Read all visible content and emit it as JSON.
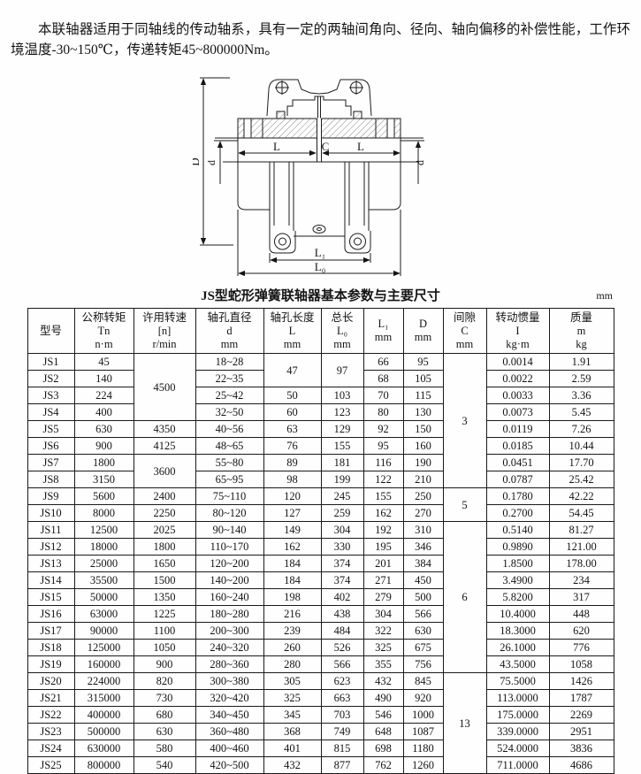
{
  "intro": {
    "text": "本联轴器适用于同轴线的传动轴系，具有一定的两轴间角向、径向、轴向偏移的补偿性能，工作环境温度-30~150℃，传递转矩45~800000Nm。"
  },
  "diagram": {
    "labels": {
      "D": "D",
      "d": "d",
      "L": "L",
      "C": "C",
      "L1": "L₁",
      "L0": "L₀"
    }
  },
  "table": {
    "title": "JS型蛇形弹簧联轴器基本参数与主要尺寸",
    "unit": "mm",
    "headers": [
      [
        "型号"
      ],
      [
        "公称转矩",
        "Tn",
        "n·m"
      ],
      [
        "许用转速",
        "[n]",
        "r/min"
      ],
      [
        "轴孔直径",
        "d",
        "mm"
      ],
      [
        "轴孔长度",
        "L",
        "mm"
      ],
      [
        "总长",
        "L₀",
        "mm"
      ],
      [
        "L₁",
        "mm"
      ],
      [
        "D",
        "mm"
      ],
      [
        "间隙",
        "C",
        "mm"
      ],
      [
        "转动惯量",
        "I",
        "kg·m"
      ],
      [
        "质量",
        "m",
        "kg"
      ]
    ],
    "rows": [
      [
        "JS1",
        "45",
        {
          "v": "4500",
          "rs": 4
        },
        "18~28",
        {
          "v": "47",
          "rs": 2
        },
        {
          "v": "97",
          "rs": 2
        },
        "66",
        "95",
        {
          "v": "3",
          "rs": 8
        },
        "0.0014",
        "1.91"
      ],
      [
        "JS2",
        "140",
        null,
        "22~35",
        null,
        null,
        "68",
        "105",
        null,
        "0.0022",
        "2.59"
      ],
      [
        "JS3",
        "224",
        null,
        "25~42",
        "50",
        "103",
        "70",
        "115",
        null,
        "0.0033",
        "3.36"
      ],
      [
        "JS4",
        "400",
        null,
        "32~50",
        "60",
        "123",
        "80",
        "130",
        null,
        "0.0073",
        "5.45"
      ],
      [
        "JS5",
        "630",
        "4350",
        "40~56",
        "63",
        "129",
        "92",
        "150",
        null,
        "0.0119",
        "7.26"
      ],
      [
        "JS6",
        "900",
        "4125",
        "48~65",
        "76",
        "155",
        "95",
        "160",
        null,
        "0.0185",
        "10.44"
      ],
      [
        "JS7",
        "1800",
        {
          "v": "3600",
          "rs": 2
        },
        "55~80",
        "89",
        "181",
        "116",
        "190",
        null,
        "0.0451",
        "17.70"
      ],
      [
        "JS8",
        "3150",
        null,
        "65~95",
        "98",
        "199",
        "122",
        "210",
        null,
        "0.0787",
        "25.42"
      ],
      [
        "JS9",
        "5600",
        "2400",
        "75~110",
        "120",
        "245",
        "155",
        "250",
        {
          "v": "5",
          "rs": 2
        },
        "0.1780",
        "42.22"
      ],
      [
        "JS10",
        "8000",
        "2250",
        "80~120",
        "127",
        "259",
        "162",
        "270",
        null,
        "0.2700",
        "54.45"
      ],
      [
        "JS11",
        "12500",
        "2025",
        "90~140",
        "149",
        "304",
        "192",
        "310",
        {
          "v": "6",
          "rs": 9
        },
        "0.5140",
        "81.27"
      ],
      [
        "JS12",
        "18000",
        "1800",
        "110~170",
        "162",
        "330",
        "195",
        "346",
        null,
        "0.9890",
        "121.00"
      ],
      [
        "JS13",
        "25000",
        "1650",
        "120~200",
        "184",
        "374",
        "201",
        "384",
        null,
        "1.8500",
        "178.00"
      ],
      [
        "JS14",
        "35500",
        "1500",
        "140~200",
        "184",
        "374",
        "271",
        "450",
        null,
        "3.4900",
        "234"
      ],
      [
        "JS15",
        "50000",
        "1350",
        "160~240",
        "198",
        "402",
        "279",
        "500",
        null,
        "5.8200",
        "317"
      ],
      [
        "JS16",
        "63000",
        "1225",
        "180~280",
        "216",
        "438",
        "304",
        "566",
        null,
        "10.4000",
        "448"
      ],
      [
        "JS17",
        "90000",
        "1100",
        "200~300",
        "239",
        "484",
        "322",
        "630",
        null,
        "18.3000",
        "620"
      ],
      [
        "JS18",
        "125000",
        "1050",
        "240~320",
        "260",
        "526",
        "325",
        "675",
        null,
        "26.1000",
        "776"
      ],
      [
        "JS19",
        "160000",
        "900",
        "280~360",
        "280",
        "566",
        "355",
        "756",
        null,
        "43.5000",
        "1058"
      ],
      [
        "JS20",
        "224000",
        "820",
        "300~380",
        "305",
        "623",
        "432",
        "845",
        {
          "v": "13",
          "rs": 6
        },
        "75.5000",
        "1426"
      ],
      [
        "JS21",
        "315000",
        "730",
        "320~420",
        "325",
        "663",
        "490",
        "920",
        null,
        "113.0000",
        "1787"
      ],
      [
        "JS22",
        "400000",
        "680",
        "340~450",
        "345",
        "703",
        "546",
        "1000",
        null,
        "175.0000",
        "2269"
      ],
      [
        "JS23",
        "500000",
        "630",
        "360~480",
        "368",
        "749",
        "648",
        "1087",
        null,
        "339.0000",
        "2951"
      ],
      [
        "JS24",
        "630000",
        "580",
        "400~460",
        "401",
        "815",
        "698",
        "1180",
        null,
        "524.0000",
        "3836"
      ],
      [
        "JS25",
        "800000",
        "540",
        "420~500",
        "432",
        "877",
        "762",
        "1260",
        null,
        "711.0000",
        "4686"
      ]
    ]
  }
}
